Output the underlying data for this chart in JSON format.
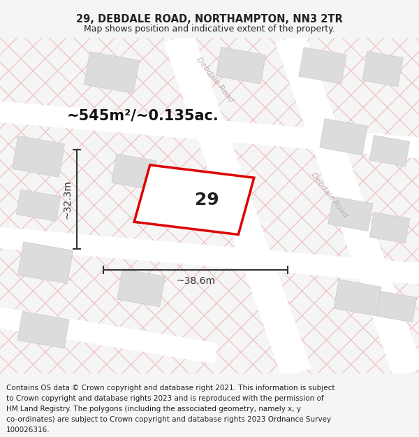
{
  "title_line1": "29, DEBDALE ROAD, NORTHAMPTON, NN3 2TR",
  "title_line2": "Map shows position and indicative extent of the property.",
  "footer_lines": [
    "Contains OS data © Crown copyright and database right 2021. This information is subject",
    "to Crown copyright and database rights 2023 and is reproduced with the permission of",
    "HM Land Registry. The polygons (including the associated geometry, namely x, y",
    "co-ordinates) are subject to Crown copyright and database rights 2023 Ordnance Survey",
    "100026316."
  ],
  "area_label": "~545m²/~0.135ac.",
  "width_label": "~38.6m",
  "height_label": "~32.3m",
  "property_number": "29",
  "bg_color": "#f5f5f5",
  "map_bg": "#eceae8",
  "road_color": "#ffffff",
  "road_stripe_color": "#f0bcbc",
  "block_color": "#dcdcdc",
  "block_edge_color": "#cccccc",
  "property_fill": "#ffffff",
  "property_edge": "#dd0000",
  "road_label_color": "#c0b0b0",
  "dim_color": "#333333",
  "title_fontsize": 10.5,
  "subtitle_fontsize": 9,
  "area_fontsize": 15,
  "dim_fontsize": 10,
  "footer_fontsize": 7.5
}
